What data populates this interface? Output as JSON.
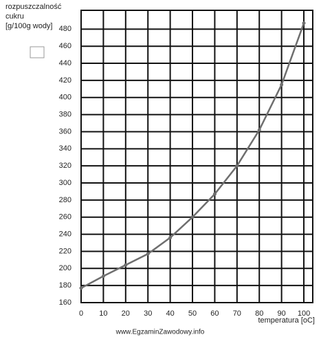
{
  "chart_data": {
    "type": "line",
    "ylabel": [
      "rozpuszczalność",
      "cukru",
      "[g/100g wody]"
    ],
    "xlabel": "temperatura [oC]",
    "watermark": "www.EgzaminZawodowy.info",
    "x": [
      0,
      10,
      20,
      30,
      40,
      50,
      60,
      70,
      80,
      90,
      100
    ],
    "series": [
      {
        "color": "#6e6e6e",
        "values": [
          177,
          191,
          204,
          217,
          236,
          260,
          287,
          320,
          362,
          415,
          487
        ]
      }
    ],
    "xlim": [
      0,
      104
    ],
    "xticks": [
      0,
      10,
      20,
      30,
      40,
      50,
      60,
      70,
      80,
      90,
      100
    ],
    "ylim": [
      160,
      502
    ],
    "yticks": [
      160,
      180,
      200,
      220,
      240,
      260,
      280,
      300,
      320,
      340,
      360,
      380,
      400,
      420,
      440,
      460,
      480
    ],
    "grid": true
  }
}
